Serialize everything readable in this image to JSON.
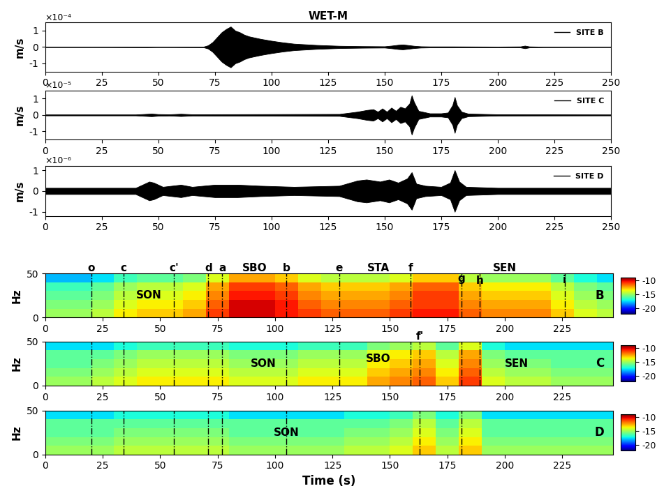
{
  "chart_data": [
    {
      "type": "waveform",
      "title": "WET-M",
      "y_label": "m/s",
      "offset_label": "×10⁻⁴",
      "series": [
        {
          "name": "SITE B",
          "color": "#000000",
          "x": [
            0,
            20,
            45,
            50,
            70,
            72,
            74,
            76,
            78,
            80,
            82,
            84,
            86,
            88,
            90,
            95,
            100,
            105,
            110,
            120,
            130,
            140,
            150,
            153,
            156,
            158,
            160,
            163,
            166,
            170,
            180,
            200,
            210,
            212,
            214,
            220,
            250
          ],
          "values": [
            0.01,
            0.01,
            0.02,
            0.01,
            0.02,
            0.1,
            0.3,
            0.6,
            0.9,
            1.1,
            1.25,
            1.0,
            0.9,
            0.75,
            0.65,
            0.5,
            0.38,
            0.28,
            0.2,
            0.12,
            0.07,
            0.05,
            0.04,
            0.08,
            0.13,
            0.15,
            0.12,
            0.07,
            0.04,
            0.03,
            0.03,
            0.02,
            0.03,
            0.08,
            0.03,
            0.015,
            0.01
          ]
        }
      ],
      "xlim": [
        0,
        250
      ],
      "xticks": [
        0,
        25,
        50,
        75,
        100,
        125,
        150,
        175,
        200,
        225,
        250
      ],
      "ylim": [
        -1.5,
        1.5
      ],
      "yticks": [
        -1,
        0,
        1
      ],
      "legend": "upper right"
    },
    {
      "type": "waveform",
      "y_label": "m/s",
      "offset_label": "×10⁻⁵",
      "series": [
        {
          "name": "SITE C",
          "color": "#000000",
          "x": [
            0,
            40,
            47,
            50,
            55,
            60,
            65,
            100,
            130,
            138,
            142,
            145,
            147,
            149,
            151,
            153,
            155,
            157,
            159,
            161,
            162,
            163,
            165,
            170,
            175,
            178,
            180,
            181,
            182,
            184,
            187,
            200,
            250
          ],
          "values": [
            0.03,
            0.03,
            0.08,
            0.05,
            0.04,
            0.07,
            0.04,
            0.05,
            0.06,
            0.2,
            0.3,
            0.35,
            0.2,
            0.4,
            0.2,
            0.45,
            0.25,
            0.5,
            0.4,
            0.7,
            1.2,
            0.8,
            0.25,
            0.1,
            0.1,
            0.15,
            0.6,
            1.1,
            0.6,
            0.2,
            0.08,
            0.04,
            0.03
          ]
        }
      ],
      "xlim": [
        0,
        250
      ],
      "xticks": [
        0,
        25,
        50,
        75,
        100,
        125,
        150,
        175,
        200,
        225,
        250
      ],
      "ylim": [
        -1.5,
        1.5
      ],
      "yticks": [
        -1,
        0,
        1
      ],
      "legend": "upper right"
    },
    {
      "type": "waveform",
      "y_label": "m/s",
      "offset_label": "×10⁻⁶",
      "series": [
        {
          "name": "SITE D",
          "color": "#000000",
          "x": [
            0,
            40,
            46,
            48,
            52,
            60,
            65,
            70,
            75,
            85,
            95,
            110,
            130,
            138,
            142,
            148,
            152,
            156,
            160,
            162,
            164,
            168,
            175,
            179,
            181,
            183,
            186,
            200,
            250
          ],
          "values": [
            0.15,
            0.15,
            0.45,
            0.4,
            0.2,
            0.3,
            0.2,
            0.25,
            0.3,
            0.3,
            0.25,
            0.2,
            0.25,
            0.5,
            0.55,
            0.45,
            0.55,
            0.4,
            0.6,
            0.9,
            0.35,
            0.25,
            0.2,
            0.4,
            1.0,
            0.45,
            0.2,
            0.15,
            0.15
          ]
        }
      ],
      "xlim": [
        0,
        250
      ],
      "xticks": [
        0,
        25,
        50,
        75,
        100,
        125,
        150,
        175,
        200,
        225,
        250
      ],
      "ylim": [
        -1.2,
        1.2
      ],
      "yticks": [
        -1,
        0,
        1
      ],
      "legend": "upper right"
    },
    {
      "type": "spectrogram",
      "site": "B",
      "y_label": "Hz",
      "time_edges": [
        0,
        10,
        20,
        30,
        40,
        50,
        60,
        70,
        80,
        90,
        100,
        110,
        120,
        130,
        140,
        150,
        160,
        170,
        180,
        190,
        200,
        210,
        220,
        230,
        240,
        250
      ],
      "freq_edges": [
        0,
        10,
        20,
        30,
        40,
        50
      ],
      "cells": [
        [
          -15,
          -15,
          -14.5,
          -13.5,
          -13,
          -13,
          -12.5,
          -11,
          -10,
          -10,
          -10.5,
          -11,
          -11.5,
          -11.5,
          -11.5,
          -11,
          -10.5,
          -10.5,
          -11.5,
          -12,
          -12,
          -12,
          -13,
          -14,
          -14.5
        ],
        [
          -15.5,
          -15.5,
          -15,
          -14,
          -13.5,
          -13.5,
          -13,
          -11.5,
          -10,
          -10,
          -10.5,
          -11.5,
          -12,
          -12,
          -12,
          -11.5,
          -11,
          -11,
          -12,
          -12.5,
          -12.5,
          -12.5,
          -13.5,
          -14.5,
          -15
        ],
        [
          -16,
          -16,
          -15.5,
          -14.5,
          -14,
          -14,
          -13.5,
          -12,
          -10.5,
          -10.5,
          -11,
          -12,
          -12.5,
          -12.5,
          -12.5,
          -12,
          -11,
          -11,
          -12.5,
          -13,
          -13,
          -13,
          -14,
          -15,
          -15.5
        ],
        [
          -16.5,
          -16.5,
          -16,
          -15,
          -14.5,
          -14.5,
          -14,
          -12.5,
          -11,
          -11,
          -11.5,
          -12.5,
          -13,
          -13,
          -13,
          -12.5,
          -11.5,
          -11.5,
          -13,
          -13.5,
          -13.5,
          -13.5,
          -14.5,
          -15.5,
          -16
        ],
        [
          -18,
          -18,
          -17.5,
          -16.5,
          -16,
          -16,
          -15.5,
          -14,
          -12.5,
          -12.5,
          -13,
          -14,
          -14.5,
          -14.5,
          -14.5,
          -14,
          -13,
          -13,
          -14.5,
          -15,
          -15,
          -15,
          -16,
          -17,
          -17.5
        ]
      ],
      "colorbar": {
        "range": [
          -22,
          -9
        ],
        "ticks": [
          -20,
          -15,
          -10
        ]
      },
      "xlim": [
        0,
        247
      ],
      "xticks": [
        0,
        25,
        50,
        75,
        100,
        125,
        150,
        175,
        200,
        225
      ],
      "ylim": [
        0,
        50
      ],
      "yticks": [
        0,
        50
      ],
      "regions": [
        {
          "label": "SON",
          "time": 45,
          "freq": 25
        },
        {
          "label": "SBO",
          "time": 91,
          "freq": 56
        },
        {
          "label": "STA",
          "time": 145,
          "freq": 56
        },
        {
          "label": "SEN",
          "time": 200,
          "freq": 56
        }
      ]
    },
    {
      "type": "spectrogram",
      "site": "C",
      "y_label": "Hz",
      "time_edges": [
        0,
        10,
        20,
        30,
        40,
        50,
        60,
        70,
        80,
        90,
        100,
        110,
        120,
        130,
        140,
        150,
        160,
        170,
        180,
        190,
        200,
        210,
        220,
        230,
        240,
        250
      ],
      "freq_edges": [
        0,
        10,
        20,
        30,
        40,
        50
      ],
      "cells": [
        [
          -15,
          -15,
          -14.5,
          -14,
          -13.5,
          -13.5,
          -13.5,
          -13.5,
          -14,
          -14,
          -14,
          -13.5,
          -13.5,
          -13.5,
          -12.5,
          -12,
          -11.5,
          -13,
          -11,
          -14,
          -14.5,
          -14.5,
          -15,
          -15,
          -15
        ],
        [
          -15.5,
          -15.5,
          -15,
          -14.5,
          -14,
          -14,
          -14,
          -14,
          -14.5,
          -14.5,
          -14.5,
          -14,
          -14,
          -14,
          -13,
          -12.5,
          -12,
          -13.5,
          -11.5,
          -14.5,
          -15,
          -15,
          -15.5,
          -15.5,
          -15.5
        ],
        [
          -16,
          -16,
          -15.5,
          -15,
          -14.5,
          -14.5,
          -14.5,
          -14.5,
          -15,
          -15,
          -15,
          -14.5,
          -14.5,
          -14.5,
          -13.5,
          -13,
          -12.5,
          -14,
          -12,
          -15,
          -15.5,
          -15.5,
          -16,
          -16,
          -16
        ],
        [
          -16,
          -16,
          -16,
          -15.5,
          -15,
          -15,
          -15,
          -15,
          -15.5,
          -15.5,
          -15.5,
          -15,
          -15,
          -15,
          -14,
          -13.5,
          -13,
          -14.5,
          -12.5,
          -15.5,
          -16,
          -16,
          -16,
          -16,
          -16
        ],
        [
          -17.5,
          -17.5,
          -17.5,
          -17,
          -16.5,
          -16.5,
          -16.5,
          -16.5,
          -17,
          -17,
          -17,
          -16.5,
          -16.5,
          -16.5,
          -15.5,
          -15,
          -14.5,
          -16,
          -14,
          -17,
          -17.5,
          -17.5,
          -17.5,
          -17.5,
          -17.5
        ]
      ],
      "colorbar": {
        "range": [
          -22,
          -9
        ],
        "ticks": [
          -20,
          -15,
          -10
        ]
      },
      "xlim": [
        0,
        247
      ],
      "xticks": [
        0,
        25,
        50,
        75,
        100,
        125,
        150,
        175,
        200,
        225
      ],
      "ylim": [
        0,
        50
      ],
      "yticks": [
        0,
        50
      ],
      "regions": [
        {
          "label": "SON",
          "time": 95,
          "freq": 25
        },
        {
          "label": "SBO",
          "time": 145,
          "freq": 30
        },
        {
          "label": "SEN",
          "time": 205,
          "freq": 25
        }
      ]
    },
    {
      "type": "spectrogram",
      "site": "D",
      "y_label": "Hz",
      "x_label": "Time (s)",
      "time_edges": [
        0,
        10,
        20,
        30,
        40,
        50,
        60,
        70,
        80,
        90,
        100,
        110,
        120,
        130,
        140,
        150,
        160,
        170,
        180,
        190,
        200,
        210,
        220,
        230,
        240,
        250
      ],
      "freq_edges": [
        0,
        10,
        20,
        30,
        40,
        50
      ],
      "cells": [
        [
          -15,
          -15,
          -15,
          -14.5,
          -14.5,
          -14.5,
          -14.5,
          -14.5,
          -15,
          -15,
          -15,
          -15,
          -15,
          -14.5,
          -14.5,
          -14,
          -13,
          -14.5,
          -13,
          -15,
          -15,
          -15,
          -15,
          -15,
          -15
        ],
        [
          -15.5,
          -15.5,
          -15.5,
          -15,
          -15,
          -15,
          -15,
          -15,
          -15.5,
          -15.5,
          -15.5,
          -15.5,
          -15.5,
          -15,
          -15,
          -14.5,
          -13.5,
          -15,
          -13.5,
          -15.5,
          -15.5,
          -15.5,
          -15.5,
          -15.5,
          -15.5
        ],
        [
          -16,
          -16,
          -16,
          -15.5,
          -15.5,
          -15.5,
          -15.5,
          -15.5,
          -16,
          -16,
          -16,
          -16,
          -16,
          -15.5,
          -15.5,
          -15,
          -14,
          -15.5,
          -14,
          -16,
          -16,
          -16,
          -16,
          -16,
          -16
        ],
        [
          -16,
          -16,
          -16,
          -16,
          -16,
          -16,
          -16,
          -16,
          -16,
          -16,
          -16,
          -16,
          -16,
          -16,
          -16,
          -15.5,
          -14.5,
          -16,
          -14.5,
          -16,
          -16,
          -16,
          -16,
          -16,
          -16
        ],
        [
          -17.5,
          -17.5,
          -17.5,
          -17,
          -17,
          -17,
          -17,
          -17,
          -17.5,
          -17.5,
          -17.5,
          -17.5,
          -17.5,
          -17,
          -17,
          -16.5,
          -15.5,
          -17,
          -15.5,
          -17.5,
          -17.5,
          -17.5,
          -17.5,
          -17.5,
          -17.5
        ]
      ],
      "colorbar": {
        "range": [
          -22,
          -9
        ],
        "ticks": [
          -20,
          -15,
          -10
        ]
      },
      "xlim": [
        0,
        247
      ],
      "xticks": [
        0,
        25,
        50,
        75,
        100,
        125,
        150,
        175,
        200,
        225
      ],
      "ylim": [
        0,
        50
      ],
      "yticks": [
        0,
        50
      ],
      "regions": [
        {
          "label": "SON",
          "time": 105,
          "freq": 25
        }
      ]
    }
  ],
  "markers": [
    {
      "label": "o",
      "time": 20,
      "sites": [
        "B",
        "C",
        "D"
      ],
      "label_freq": 56
    },
    {
      "label": "c",
      "time": 34,
      "sites": [
        "B",
        "C",
        "D"
      ],
      "label_freq": 56
    },
    {
      "label": "c'",
      "time": 56,
      "sites": [
        "B",
        "C",
        "D"
      ],
      "label_freq": 56
    },
    {
      "label": "d",
      "time": 71,
      "sites": [
        "B",
        "C",
        "D"
      ],
      "label_freq": 56
    },
    {
      "label": "a",
      "time": 77,
      "sites": [
        "B",
        "C",
        "D"
      ],
      "label_freq": 56
    },
    {
      "label": "b",
      "time": 105,
      "sites": [
        "B",
        "C",
        "D"
      ],
      "label_freq": 56
    },
    {
      "label": "e",
      "time": 128,
      "sites": [
        "B",
        "C"
      ],
      "label_freq": 56
    },
    {
      "label": "f",
      "time": 159,
      "sites": [
        "B",
        "C"
      ],
      "label_freq": 56
    },
    {
      "label": "f'",
      "time": 163,
      "sites": [
        "C",
        "D"
      ],
      "label_freq": 56
    },
    {
      "label": "g",
      "time": 181,
      "sites": [
        "B",
        "C",
        "D"
      ],
      "label_freq": 44
    },
    {
      "label": "h",
      "time": 189,
      "sites": [
        "B",
        "C"
      ],
      "label_freq": 42
    },
    {
      "label": "i",
      "time": 226,
      "sites": [
        "B"
      ],
      "label_freq": 43
    }
  ]
}
